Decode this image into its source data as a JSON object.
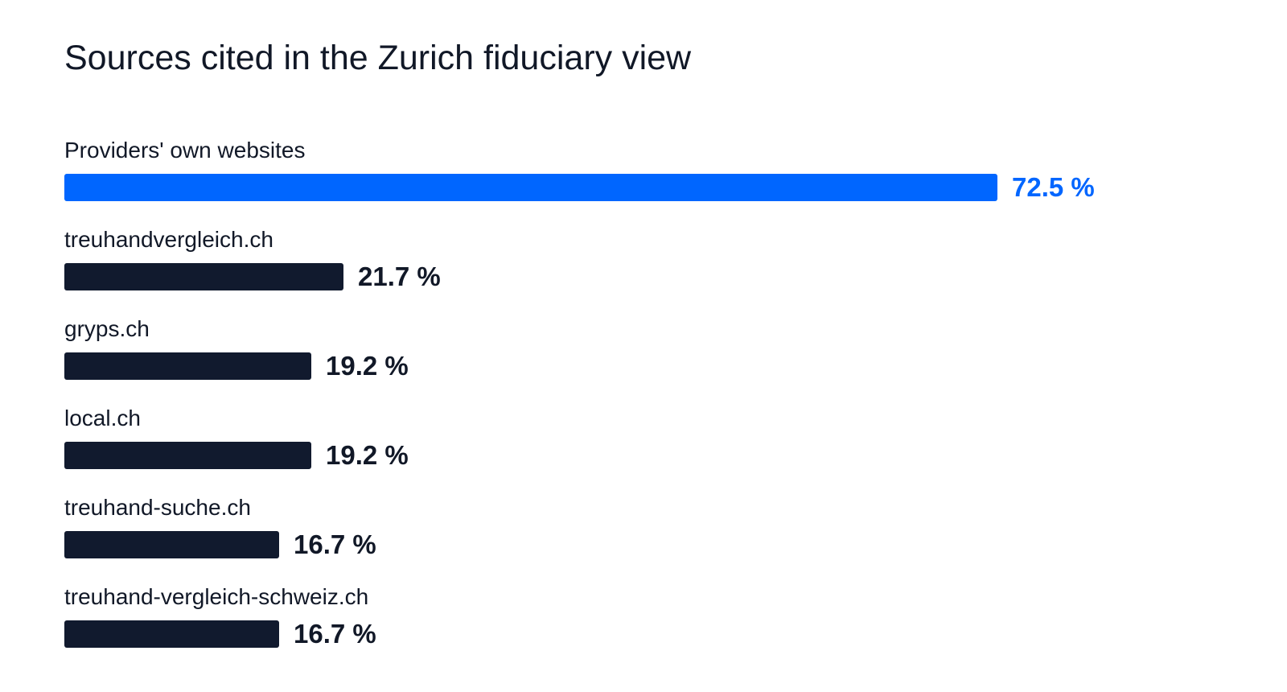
{
  "chart_data": {
    "type": "bar",
    "orientation": "horizontal",
    "title": "Sources cited in the Zurich fiduciary view",
    "categories": [
      "Providers' own websites",
      "treuhandvergleich.ch",
      "gryps.ch",
      "local.ch",
      "treuhand-suche.ch",
      "treuhand-vergleich-schweiz.ch"
    ],
    "values": [
      72.5,
      21.7,
      19.2,
      19.2,
      16.7,
      16.7
    ],
    "value_labels": [
      "72.5 %",
      "21.7 %",
      "19.2 %",
      "19.2 %",
      "16.7 %",
      "16.7 %"
    ],
    "unit": "%",
    "xlim": [
      0,
      100
    ],
    "grid": false,
    "highlight_index": 0,
    "colors": {
      "highlight": "#0066ff",
      "default": "#111a2e",
      "text": "#111827"
    }
  }
}
